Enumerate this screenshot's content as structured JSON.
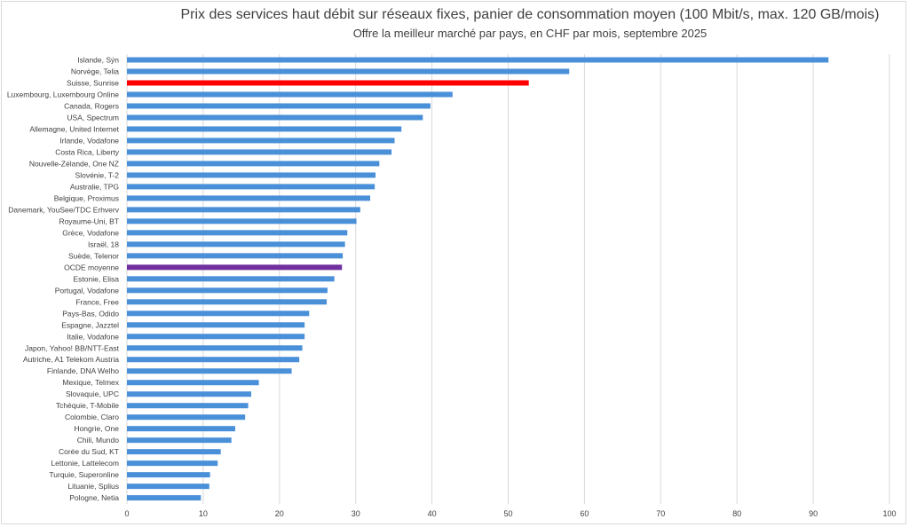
{
  "chart_data": {
    "type": "bar",
    "orientation": "horizontal",
    "title": "Prix des services haut débit sur réseaux fixes, panier de consommation moyen  (100 Mbit/s, max. 120 GB/mois)",
    "subtitle": "Offre la meilleur marché par pays, en CHF par mois, septembre 2025",
    "xlabel": "",
    "ylabel": "",
    "xlim": [
      0,
      100
    ],
    "x_ticks": [
      0,
      10,
      20,
      30,
      40,
      50,
      60,
      70,
      80,
      90,
      100
    ],
    "grid": true,
    "legend": "none",
    "colors": {
      "default": "#4a90d9",
      "suisse": "#ff0000",
      "oecd": "#7030a0",
      "grid": "#d9d9d9"
    },
    "categories": [
      "Islande, Sýn",
      "Norvège, Telia",
      "Suisse, Sunrise",
      "Luxembourg, Luxembourg Online",
      "Canada, Rogers",
      "USA, Spectrum",
      "Allemagne, United Internet",
      "Irlande, Vodafone",
      "Costa Rica, Liberty",
      "Nouvelle-Zélande, One NZ",
      "Slovénie, T-2",
      "Australie, TPG",
      "Belgique, Proximus",
      "Danemark, YouSee/TDC Erhverv",
      "Royaume-Uni, BT",
      "Grèce, Vodafone",
      "Israël, 18",
      "Suède, Telenor",
      "OCDE moyenne",
      "Estonie, Elisa",
      "Portugal, Vodafone",
      "France, Free",
      "Pays-Bas, Odido",
      "Espagne, Jazztel",
      "Italie, Vodafone",
      "Japon, Yahoo! BB/NTT-East",
      "Autriche, A1 Telekom Austria",
      "Finlande, DNA Welho",
      "Mexique, Telmex",
      "Slovaquie, UPC",
      "Tchéquie, T-Mobile",
      "Colombie, Claro",
      "Hongrie, One",
      "Chili, Mundo",
      "Corée du Sud, KT",
      "Lettonie, Lattelecom",
      "Turquie, Superonline",
      "Lituanie, Splius",
      "Pologne, Netia"
    ],
    "values": [
      92.0,
      58.0,
      52.7,
      42.7,
      39.8,
      38.8,
      36.0,
      35.1,
      34.7,
      33.1,
      32.6,
      32.5,
      31.9,
      30.6,
      30.1,
      28.9,
      28.6,
      28.3,
      28.2,
      27.2,
      26.3,
      26.2,
      23.9,
      23.3,
      23.3,
      23.0,
      22.6,
      21.6,
      17.3,
      16.3,
      15.9,
      15.5,
      14.2,
      13.7,
      12.3,
      11.9,
      10.9,
      10.8,
      9.7
    ],
    "highlight": {
      "Suisse, Sunrise": "suisse",
      "OCDE moyenne": "oecd"
    }
  }
}
